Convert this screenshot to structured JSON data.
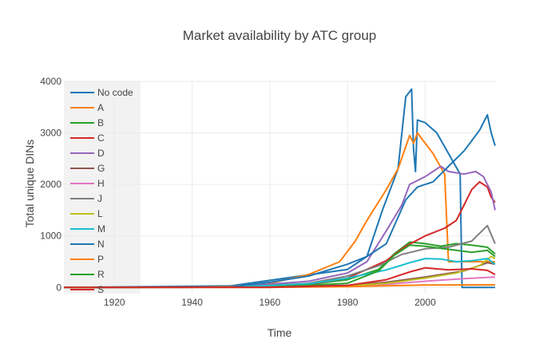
{
  "chart_data": {
    "type": "line",
    "title": "Market availability by ATC group",
    "xlabel": "Time",
    "ylabel": "Total unique DINs",
    "xlim": [
      1907,
      2018
    ],
    "ylim": [
      -120,
      4000
    ],
    "x_ticks": [
      1920,
      1940,
      1960,
      1980,
      2000
    ],
    "y_ticks": [
      0,
      1000,
      2000,
      3000,
      4000
    ],
    "grid": true,
    "legend_position": "top-left (inside plot)",
    "series": [
      {
        "name": "No code",
        "color": "#1f77b4",
        "points": [
          [
            1907,
            0
          ],
          [
            1950,
            30
          ],
          [
            1980,
            350
          ],
          [
            1985,
            600
          ],
          [
            1989,
            1500
          ],
          [
            1993,
            2300
          ],
          [
            1995,
            3700
          ],
          [
            1996.5,
            3850
          ],
          [
            1997,
            2700
          ],
          [
            1997.5,
            2250
          ],
          [
            1998,
            3250
          ],
          [
            2000,
            3200
          ],
          [
            2003,
            3000
          ],
          [
            2006,
            2600
          ],
          [
            2009,
            2200
          ],
          [
            2009.5,
            0
          ],
          [
            2018,
            0
          ]
        ]
      },
      {
        "name": "A",
        "color": "#ff7f0e",
        "points": [
          [
            1907,
            0
          ],
          [
            1930,
            5
          ],
          [
            1950,
            20
          ],
          [
            1960,
            80
          ],
          [
            1970,
            250
          ],
          [
            1978,
            500
          ],
          [
            1982,
            900
          ],
          [
            1985,
            1300
          ],
          [
            1990,
            1900
          ],
          [
            1993,
            2300
          ],
          [
            1996,
            2950
          ],
          [
            1997,
            2800
          ],
          [
            1998,
            3000
          ],
          [
            2000,
            2800
          ],
          [
            2002,
            2600
          ],
          [
            2005,
            2200
          ],
          [
            2006,
            500
          ],
          [
            2009,
            500
          ],
          [
            2018,
            500
          ]
        ]
      },
      {
        "name": "B",
        "color": "#2ca02c",
        "points": [
          [
            1907,
            0
          ],
          [
            1950,
            10
          ],
          [
            1970,
            60
          ],
          [
            1980,
            150
          ],
          [
            1988,
            350
          ],
          [
            1992,
            650
          ],
          [
            1996,
            880
          ],
          [
            2000,
            850
          ],
          [
            2004,
            800
          ],
          [
            2008,
            850
          ],
          [
            2012,
            820
          ],
          [
            2016,
            780
          ],
          [
            2018,
            650
          ]
        ]
      },
      {
        "name": "C",
        "color": "#d62728",
        "points": [
          [
            1907,
            0
          ],
          [
            1950,
            5
          ],
          [
            1970,
            60
          ],
          [
            1980,
            180
          ],
          [
            1990,
            520
          ],
          [
            1995,
            800
          ],
          [
            2000,
            1000
          ],
          [
            2005,
            1150
          ],
          [
            2008,
            1300
          ],
          [
            2010,
            1600
          ],
          [
            2012,
            1900
          ],
          [
            2014,
            2050
          ],
          [
            2016,
            1950
          ],
          [
            2017,
            1750
          ],
          [
            2018,
            1650
          ]
        ]
      },
      {
        "name": "D",
        "color": "#9467bd",
        "points": [
          [
            1907,
            0
          ],
          [
            1950,
            10
          ],
          [
            1970,
            120
          ],
          [
            1980,
            280
          ],
          [
            1985,
            500
          ],
          [
            1990,
            1100
          ],
          [
            1994,
            1600
          ],
          [
            1996,
            2000
          ],
          [
            2000,
            2150
          ],
          [
            2004,
            2350
          ],
          [
            2006,
            2250
          ],
          [
            2010,
            2200
          ],
          [
            2013,
            2250
          ],
          [
            2015,
            2150
          ],
          [
            2017,
            1850
          ],
          [
            2018,
            1500
          ]
        ]
      },
      {
        "name": "G",
        "color": "#8c564b",
        "points": [
          [
            1907,
            0
          ],
          [
            1960,
            5
          ],
          [
            1980,
            40
          ],
          [
            1990,
            100
          ],
          [
            2000,
            200
          ],
          [
            2010,
            320
          ],
          [
            2016,
            480
          ],
          [
            2018,
            450
          ]
        ]
      },
      {
        "name": "H",
        "color": "#e377c2",
        "points": [
          [
            1907,
            0
          ],
          [
            1960,
            2
          ],
          [
            1980,
            20
          ],
          [
            1990,
            60
          ],
          [
            2000,
            120
          ],
          [
            2010,
            170
          ],
          [
            2018,
            200
          ]
        ]
      },
      {
        "name": "J",
        "color": "#7f7f7f",
        "points": [
          [
            1907,
            0
          ],
          [
            1950,
            5
          ],
          [
            1970,
            80
          ],
          [
            1980,
            220
          ],
          [
            1988,
            420
          ],
          [
            1994,
            640
          ],
          [
            2000,
            750
          ],
          [
            2006,
            780
          ],
          [
            2012,
            900
          ],
          [
            2016,
            1200
          ],
          [
            2018,
            850
          ]
        ]
      },
      {
        "name": "L",
        "color": "#bcbd22",
        "points": [
          [
            1907,
            0
          ],
          [
            1960,
            2
          ],
          [
            1980,
            30
          ],
          [
            1990,
            80
          ],
          [
            2000,
            180
          ],
          [
            2008,
            280
          ],
          [
            2014,
            420
          ],
          [
            2017,
            600
          ],
          [
            2018,
            560
          ]
        ]
      },
      {
        "name": "M",
        "color": "#17becf",
        "points": [
          [
            1907,
            0
          ],
          [
            1950,
            5
          ],
          [
            1970,
            70
          ],
          [
            1980,
            180
          ],
          [
            1990,
            340
          ],
          [
            1996,
            480
          ],
          [
            2000,
            560
          ],
          [
            2004,
            550
          ],
          [
            2008,
            500
          ],
          [
            2012,
            520
          ],
          [
            2016,
            560
          ],
          [
            2018,
            450
          ]
        ]
      },
      {
        "name": "N",
        "color": "#1f77b4",
        "points": [
          [
            1907,
            0
          ],
          [
            1950,
            10
          ],
          [
            1960,
            100
          ],
          [
            1970,
            220
          ],
          [
            1980,
            450
          ],
          [
            1985,
            600
          ],
          [
            1990,
            850
          ],
          [
            1995,
            1700
          ],
          [
            1998,
            1950
          ],
          [
            2002,
            2050
          ],
          [
            2006,
            2350
          ],
          [
            2010,
            2650
          ],
          [
            2014,
            3050
          ],
          [
            2016,
            3350
          ],
          [
            2017,
            3000
          ],
          [
            2018,
            2750
          ]
        ]
      },
      {
        "name": "P",
        "color": "#ff7f0e",
        "points": [
          [
            1907,
            0
          ],
          [
            1960,
            2
          ],
          [
            1980,
            15
          ],
          [
            1990,
            30
          ],
          [
            2000,
            45
          ],
          [
            2018,
            50
          ]
        ]
      },
      {
        "name": "R",
        "color": "#2ca02c",
        "points": [
          [
            1907,
            0
          ],
          [
            1960,
            5
          ],
          [
            1980,
            80
          ],
          [
            1988,
            320
          ],
          [
            1992,
            620
          ],
          [
            1996,
            820
          ],
          [
            2000,
            800
          ],
          [
            2004,
            760
          ],
          [
            2008,
            720
          ],
          [
            2012,
            680
          ],
          [
            2016,
            720
          ],
          [
            2018,
            600
          ]
        ]
      },
      {
        "name": "S",
        "color": "#d62728",
        "points": [
          [
            1907,
            0
          ],
          [
            1960,
            2
          ],
          [
            1980,
            40
          ],
          [
            1990,
            150
          ],
          [
            1996,
            300
          ],
          [
            2000,
            380
          ],
          [
            2006,
            340
          ],
          [
            2012,
            360
          ],
          [
            2016,
            330
          ],
          [
            2018,
            250
          ]
        ]
      }
    ]
  }
}
